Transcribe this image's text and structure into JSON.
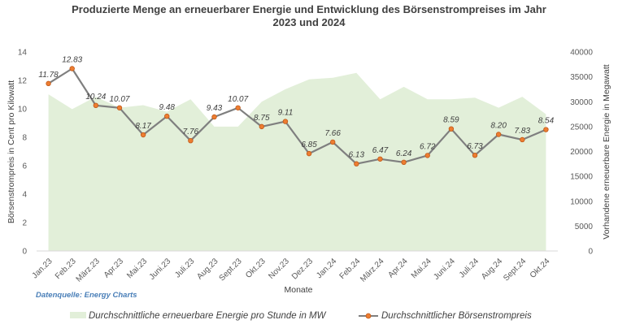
{
  "chart_data": {
    "type": "line",
    "title_line1": "Produzierte Menge an erneuerbarer Energie und Entwicklung des Börsenstrompreises im Jahr",
    "title_line2": "2023 und 2024",
    "xlabel": "Monate",
    "ylabel": "Börsenstrompreis in Cent pro Kilowatt",
    "y2label": "Vorhandene erneuerbare Energie in Megawatt",
    "source": "Datenquelle: Energy Charts",
    "categories": [
      "Jan.23",
      "Feb.23",
      "März.23",
      "Apr.23",
      "Mai.23",
      "Juni.23",
      "Juli.23",
      "Aug.23",
      "Sept.23",
      "Okt.23",
      "Nov.23",
      "Dez.23",
      "Jan.24",
      "Feb.24",
      "März.24",
      "Apr.24",
      "Mai.24",
      "Juni.24",
      "Juli.24",
      "Aug.24",
      "Sept.24",
      "Okt.24"
    ],
    "ylim": [
      0,
      14
    ],
    "yticks": [
      0,
      2,
      4,
      6,
      8,
      10,
      12,
      14
    ],
    "y2lim": [
      0,
      40000
    ],
    "y2ticks": [
      0,
      5000,
      10000,
      15000,
      20000,
      25000,
      30000,
      35000,
      40000
    ],
    "series": [
      {
        "name": "Durchschnittliche erneuerbare Energie pro Stunde in MW",
        "type": "area",
        "axis": "right",
        "color": "#e2efd9",
        "values": [
          31500,
          28500,
          31000,
          28800,
          29300,
          28000,
          30500,
          25000,
          25000,
          30000,
          32500,
          34500,
          34800,
          35800,
          30500,
          33000,
          30500,
          30500,
          30800,
          28800,
          31000,
          27500
        ]
      },
      {
        "name": "Durchschnittlicher Börsenstrompreis",
        "type": "line",
        "axis": "left",
        "color": "#7f7f7f",
        "marker_color": "#ed7d31",
        "values": [
          11.78,
          12.83,
          10.24,
          10.07,
          8.17,
          9.48,
          7.76,
          9.43,
          10.07,
          8.75,
          9.11,
          6.85,
          7.66,
          6.13,
          6.47,
          6.24,
          6.72,
          8.59,
          6.73,
          8.2,
          7.83,
          8.54
        ],
        "data_labels": [
          "11.78",
          "12.83",
          "10.24",
          "10.07",
          "8.17",
          "9.48",
          "7.76",
          "9.43",
          "10.07",
          "8.75",
          "9.11",
          "6.85",
          "7.66",
          "6.13",
          "6.47",
          "6.24",
          "6.72",
          "8.59",
          "6.73",
          "8.20",
          "7.83",
          "8.54"
        ]
      }
    ],
    "grid": false,
    "legend_position": "bottom"
  }
}
